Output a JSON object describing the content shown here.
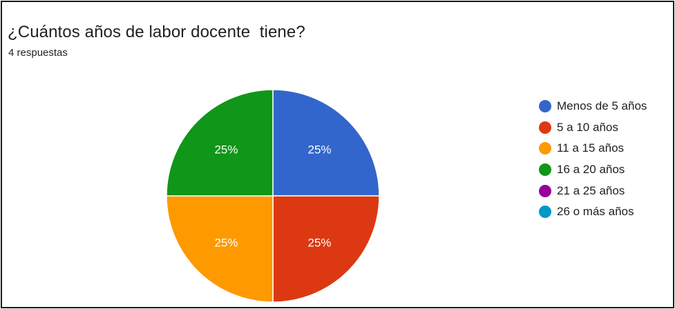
{
  "header": {
    "title": "¿Cuántos años de labor docente  tiene?",
    "responses": "4 respuestas"
  },
  "chart_data": {
    "type": "pie",
    "title": "¿Cuántos años de labor docente  tiene?",
    "categories": [
      "Menos de 5 años",
      "5 a 10 años",
      "11 a 15 años",
      "16 a 20 años",
      "21 a 25 años",
      "26 o más años"
    ],
    "values": [
      1,
      1,
      1,
      1,
      0,
      0
    ],
    "data_labels": [
      "25%",
      "25%",
      "25%",
      "25%",
      "",
      ""
    ],
    "colors": [
      "#3366cc",
      "#dc3912",
      "#ff9900",
      "#109618",
      "#990099",
      "#0099c6"
    ],
    "legend_position": "right"
  }
}
